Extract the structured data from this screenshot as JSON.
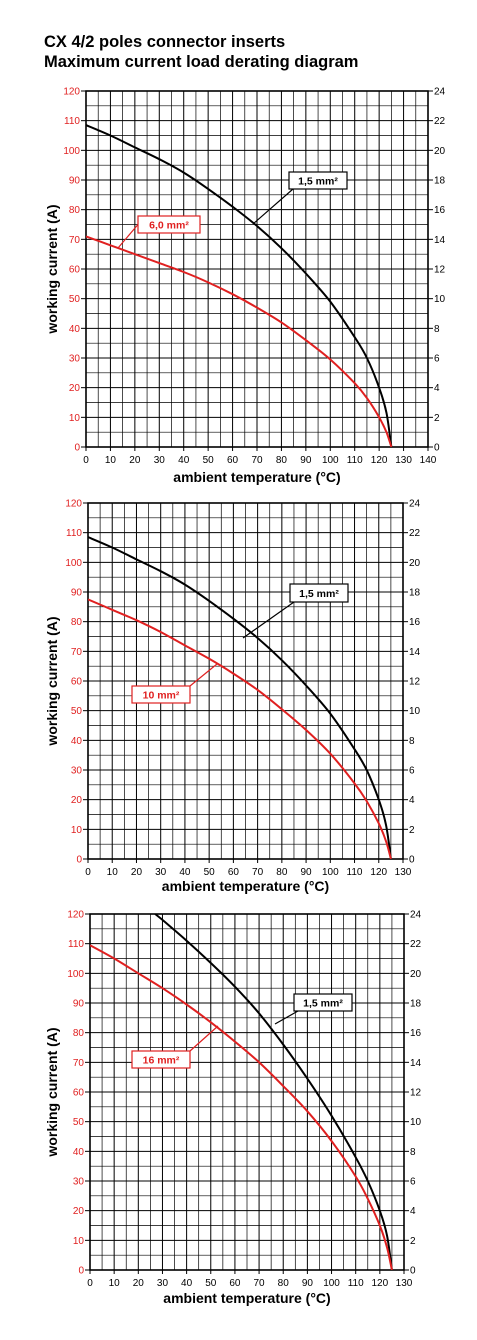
{
  "header": {
    "title": "CX 4/2 poles connector inserts",
    "subtitle": "Maximum current load derating diagram"
  },
  "chart_data": [
    {
      "type": "line",
      "xlabel": "ambient temperature (°C)",
      "ylabel": "working current (A)",
      "xlim": [
        0,
        140
      ],
      "ylim": [
        0,
        120
      ],
      "y2lim": [
        0,
        24
      ],
      "x_ticks": [
        0,
        10,
        20,
        30,
        40,
        50,
        60,
        70,
        80,
        90,
        100,
        110,
        120,
        130,
        140
      ],
      "y_ticks": [
        0,
        10,
        20,
        30,
        40,
        50,
        60,
        70,
        80,
        90,
        100,
        110,
        120
      ],
      "y2_ticks": [
        0,
        2,
        4,
        6,
        8,
        10,
        12,
        14,
        16,
        18,
        20,
        22,
        24
      ],
      "grid": true,
      "series": [
        {
          "name": "1,5 mm²",
          "color": "#000000",
          "axis": "right",
          "x": [
            0,
            10,
            20,
            30,
            40,
            50,
            60,
            70,
            80,
            90,
            100,
            110,
            115,
            120,
            123,
            125
          ],
          "y": [
            21.7,
            21.0,
            20.2,
            19.4,
            18.5,
            17.4,
            16.2,
            14.9,
            13.4,
            11.7,
            9.8,
            7.4,
            6.0,
            4.0,
            2.3,
            0
          ]
        },
        {
          "name": "6,0 mm²",
          "color": "#e02020",
          "axis": "left",
          "x": [
            0,
            10,
            20,
            30,
            40,
            50,
            60,
            70,
            80,
            90,
            100,
            110,
            115,
            120,
            123,
            125
          ],
          "y": [
            71,
            68,
            65,
            62,
            59,
            55.5,
            51.5,
            47,
            42,
            36,
            29.5,
            21.5,
            16.5,
            10,
            5,
            0
          ]
        }
      ]
    },
    {
      "type": "line",
      "xlabel": "ambient temperature (°C)",
      "ylabel": "working current (A)",
      "xlim": [
        0,
        130
      ],
      "ylim": [
        0,
        120
      ],
      "y2lim": [
        0,
        24
      ],
      "x_ticks": [
        0,
        10,
        20,
        30,
        40,
        50,
        60,
        70,
        80,
        90,
        100,
        110,
        120,
        130
      ],
      "y_ticks": [
        0,
        10,
        20,
        30,
        40,
        50,
        60,
        70,
        80,
        90,
        100,
        110,
        120
      ],
      "y2_ticks": [
        0,
        2,
        4,
        6,
        8,
        10,
        12,
        14,
        16,
        18,
        20,
        22,
        24
      ],
      "grid": true,
      "series": [
        {
          "name": "1,5 mm²",
          "color": "#000000",
          "axis": "right",
          "x": [
            0,
            10,
            20,
            30,
            40,
            50,
            60,
            70,
            80,
            90,
            100,
            110,
            115,
            120,
            123,
            125
          ],
          "y": [
            21.7,
            21.0,
            20.2,
            19.4,
            18.5,
            17.4,
            16.2,
            14.9,
            13.4,
            11.7,
            9.8,
            7.4,
            6.0,
            4.0,
            2.3,
            0
          ]
        },
        {
          "name": "10 mm²",
          "color": "#e02020",
          "axis": "left",
          "x": [
            0,
            10,
            20,
            30,
            40,
            50,
            60,
            70,
            80,
            90,
            100,
            110,
            115,
            120,
            123,
            125
          ],
          "y": [
            87.5,
            84,
            80.5,
            76.5,
            72,
            67.5,
            62.5,
            57,
            50.5,
            43.5,
            35.5,
            25.5,
            19.5,
            12,
            6,
            0
          ]
        }
      ]
    },
    {
      "type": "line",
      "xlabel": "ambient temperature (°C)",
      "ylabel": "working current (A)",
      "xlim": [
        0,
        130
      ],
      "ylim": [
        0,
        120
      ],
      "y2lim": [
        0,
        24
      ],
      "x_ticks": [
        0,
        10,
        20,
        30,
        40,
        50,
        60,
        70,
        80,
        90,
        100,
        110,
        120,
        130
      ],
      "y_ticks": [
        0,
        10,
        20,
        30,
        40,
        50,
        60,
        70,
        80,
        90,
        100,
        110,
        120
      ],
      "y2_ticks": [
        0,
        2,
        4,
        6,
        8,
        10,
        12,
        14,
        16,
        18,
        20,
        22,
        24
      ],
      "grid": true,
      "series": [
        {
          "name": "1,5 mm²",
          "color": "#000000",
          "axis": "right",
          "x": [
            27,
            30,
            40,
            50,
            60,
            70,
            80,
            90,
            100,
            110,
            115,
            120,
            123,
            125
          ],
          "y": [
            24,
            23.6,
            22.2,
            20.7,
            19.1,
            17.3,
            15.2,
            12.9,
            10.4,
            7.6,
            6.0,
            4.0,
            2.3,
            0
          ]
        },
        {
          "name": "16 mm²",
          "color": "#e02020",
          "axis": "left",
          "x": [
            0,
            10,
            20,
            30,
            40,
            50,
            60,
            70,
            80,
            90,
            100,
            110,
            115,
            120,
            123,
            125
          ],
          "y": [
            109.5,
            105,
            100,
            95,
            89.5,
            83.5,
            77,
            70,
            62,
            53.5,
            43.5,
            31.5,
            24,
            15,
            7.5,
            0
          ]
        }
      ]
    }
  ]
}
